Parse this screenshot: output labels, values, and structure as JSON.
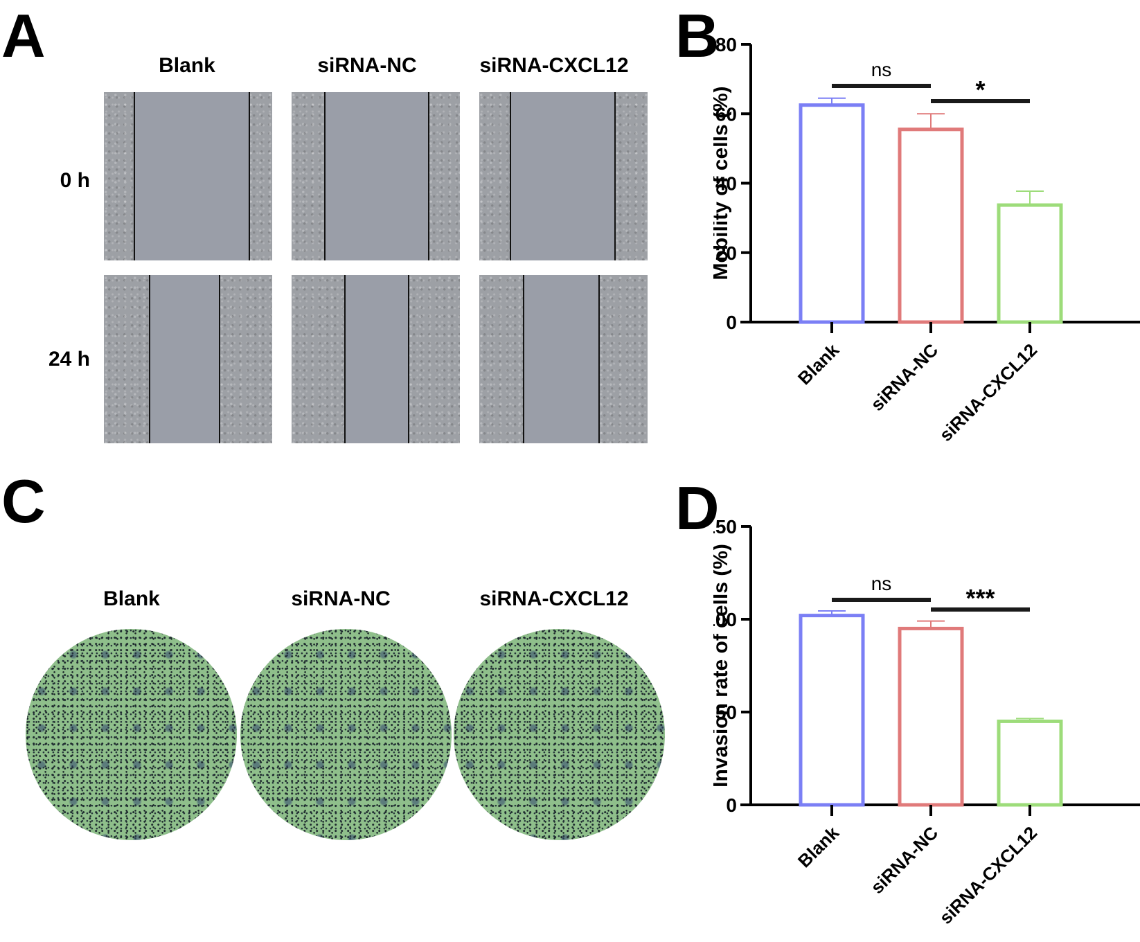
{
  "figure": {
    "panels": {
      "A": {
        "letter": "A",
        "columns": [
          "Blank",
          "siRNA-NC",
          "siRNA-CXCL12"
        ],
        "rows": [
          "0 h",
          "24 h"
        ]
      },
      "B": {
        "letter": "B"
      },
      "C": {
        "letter": "C",
        "columns": [
          "Blank",
          "siRNA-NC",
          "siRNA-CXCL12"
        ]
      },
      "D": {
        "letter": "D"
      }
    },
    "colors": {
      "blank": "#7b7ff5",
      "sirna_nc": "#e07a7a",
      "sirna_cxcl12": "#9ddc7a",
      "sig_bar": "#1a1a1a"
    }
  },
  "chart_data": [
    {
      "panel": "B",
      "type": "bar",
      "title": "",
      "xlabel": "",
      "ylabel": "Mobility of cells (%)",
      "categories": [
        "Blank",
        "siRNA-NC",
        "siRNA-CXCL12"
      ],
      "values": [
        62.5,
        55.5,
        33.7
      ],
      "error": [
        2.0,
        4.5,
        4.0
      ],
      "ylim": [
        0,
        80
      ],
      "yticks": [
        0,
        20,
        40,
        60,
        80
      ],
      "grid": false,
      "annotations": [
        {
          "from": "Blank",
          "to": "siRNA-NC",
          "label": "ns"
        },
        {
          "from": "siRNA-NC",
          "to": "siRNA-CXCL12",
          "label": "*"
        }
      ]
    },
    {
      "panel": "D",
      "type": "bar",
      "title": "",
      "xlabel": "",
      "ylabel": "Invasion rate of cells (%)",
      "categories": [
        "Blank",
        "siRNA-NC",
        "siRNA-CXCL12"
      ],
      "values": [
        102,
        95,
        45
      ],
      "error": [
        2.5,
        4.0,
        1.5
      ],
      "ylim": [
        0,
        150
      ],
      "yticks": [
        0,
        50,
        100,
        150
      ],
      "grid": false,
      "annotations": [
        {
          "from": "Blank",
          "to": "siRNA-NC",
          "label": "ns"
        },
        {
          "from": "siRNA-NC",
          "to": "siRNA-CXCL12",
          "label": "***"
        }
      ]
    }
  ]
}
